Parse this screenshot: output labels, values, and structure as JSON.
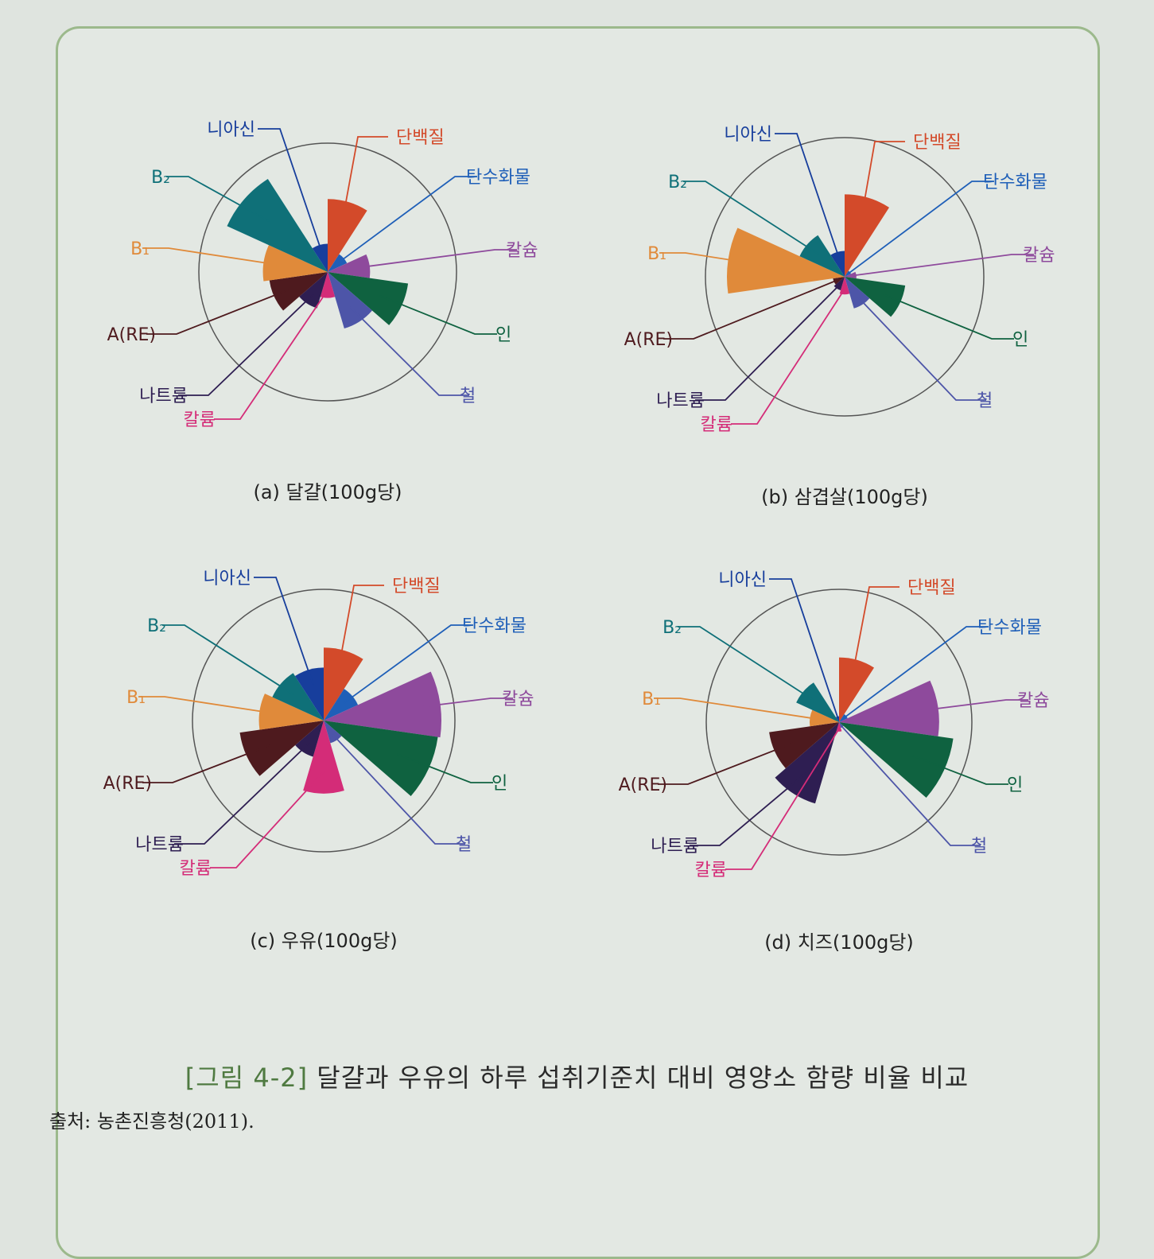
{
  "figure": {
    "caption_label": "[그림 4-2]",
    "caption_text": "달걀과 우유의 하루 섭취기준치 대비 영양소 함량 비율 비교",
    "source": "출처: 농촌진흥청(2011)."
  },
  "colors": {
    "protein": "#d34a2a",
    "carbohydrate": "#1f5fb8",
    "calcium": "#8e4a9c",
    "phosphorus": "#0f6240",
    "iron": "#4d55a8",
    "potassium": "#d42c78",
    "sodium": "#2e1e52",
    "vitamin_a": "#4e1a1e",
    "b1": "#e08a3a",
    "b2": "#0f7078",
    "niacin": "#173e9c"
  },
  "chart_data": [
    {
      "type": "polar_area",
      "title": "(a) 달걀(100g당)",
      "categories": [
        "단백질",
        "탄수화물",
        "칼슘",
        "인",
        "철",
        "칼륨",
        "나트륨",
        "A(RE)",
        "B₁",
        "B₂",
        "니아신"
      ],
      "values": [
        0.62,
        0.18,
        0.36,
        0.69,
        0.5,
        0.22,
        0.32,
        0.5,
        0.55,
        0.94,
        0.24
      ]
    },
    {
      "type": "polar_area",
      "title": "(b) 삼겹살(100g당)",
      "categories": [
        "단백질",
        "탄수화물",
        "칼슘",
        "인",
        "철",
        "칼륨",
        "나트륨",
        "A(RE)",
        "B₁",
        "B₂",
        "니아신"
      ],
      "values": [
        0.7,
        0.06,
        0.1,
        0.52,
        0.28,
        0.15,
        0.12,
        0.1,
        1.0,
        0.42,
        0.22
      ]
    },
    {
      "type": "polar_area",
      "title": "(c) 우유(100g당)",
      "categories": [
        "단백질",
        "탄수화물",
        "칼슘",
        "인",
        "철",
        "칼륨",
        "나트륨",
        "A(RE)",
        "B₁",
        "B₂",
        "니아신"
      ],
      "values": [
        0.62,
        0.32,
        1.0,
        0.98,
        0.2,
        0.62,
        0.32,
        0.72,
        0.55,
        0.48,
        0.45
      ]
    },
    {
      "type": "polar_area",
      "title": "(d) 치즈(100g당)",
      "categories": [
        "단백질",
        "탄수화물",
        "칼슘",
        "인",
        "철",
        "칼륨",
        "나트륨",
        "A(RE)",
        "B₁",
        "B₂",
        "니아신"
      ],
      "values": [
        0.55,
        0.08,
        0.85,
        0.98,
        0.05,
        0.08,
        0.72,
        0.6,
        0.25,
        0.4,
        0.05
      ]
    }
  ]
}
